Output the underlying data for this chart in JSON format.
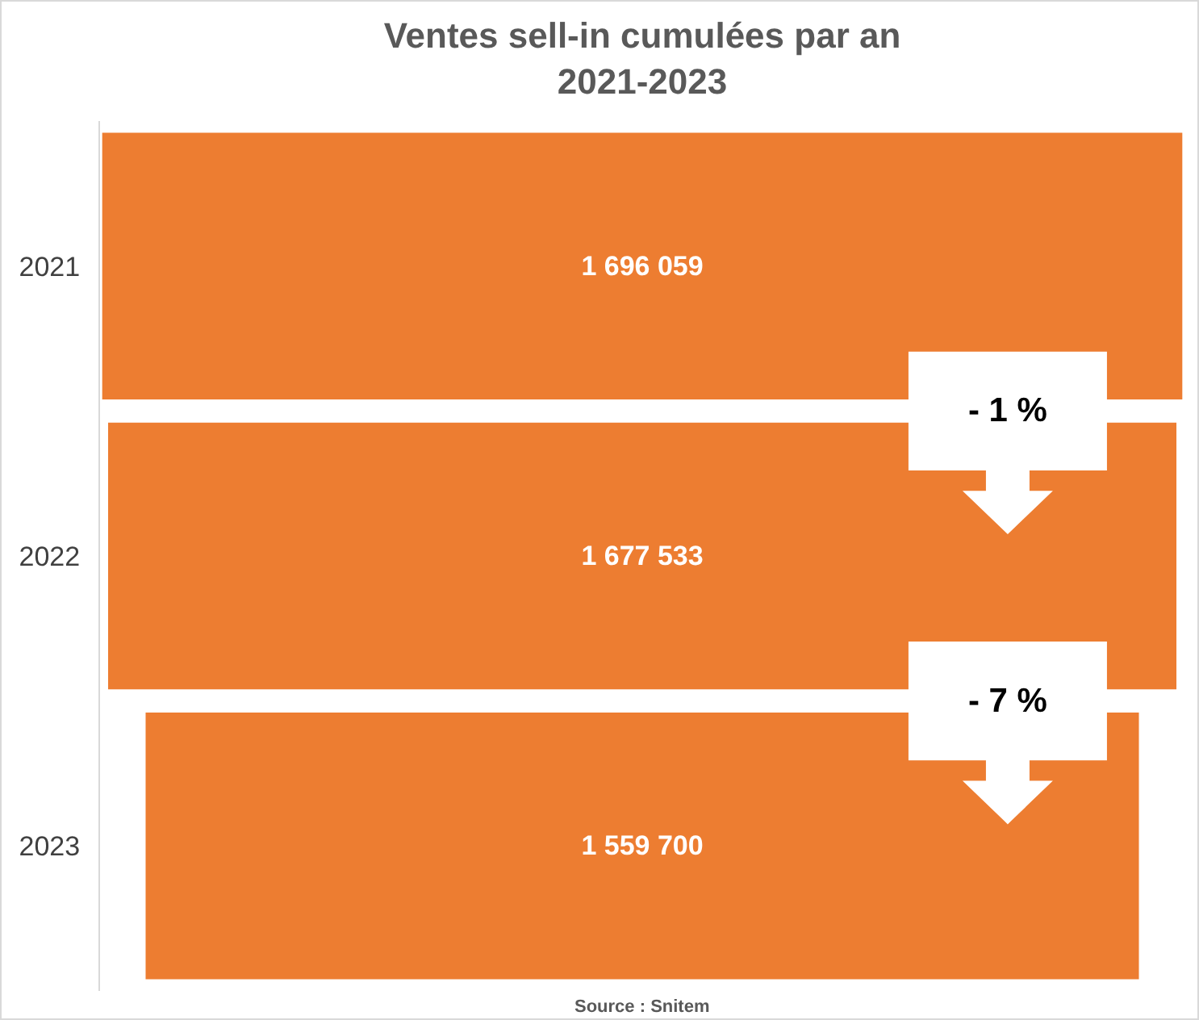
{
  "chart_data": {
    "type": "other",
    "title": "Ventes sell-in cumulées par an\n2021-2023",
    "categories": [
      "2021",
      "2022",
      "2023"
    ],
    "values": [
      1696059,
      1677533,
      1559700
    ],
    "value_labels": [
      "1 696 059",
      "1 677 533",
      "1 559 700"
    ],
    "color": "#ed7d31",
    "annotations": [
      "- 1 %",
      "- 7 %",
      "Source : Snitem"
    ]
  }
}
